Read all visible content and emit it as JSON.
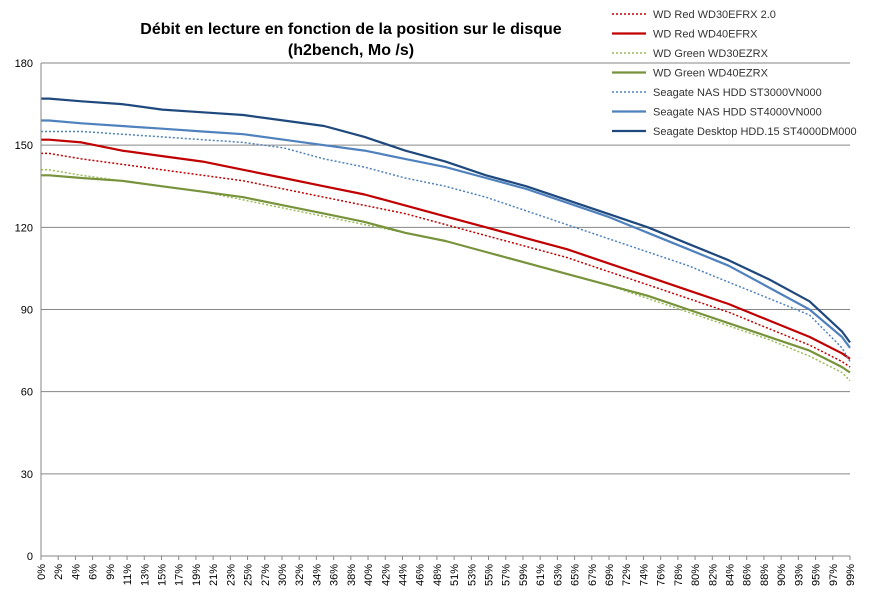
{
  "chart_data": {
    "type": "line",
    "title": "Débit en lecture en fonction de la position sur le disque",
    "subtitle": "(h2bench, Mo /s)",
    "xlabel": "",
    "ylabel": "",
    "ylim": [
      0,
      180
    ],
    "yticks": [
      0,
      30,
      60,
      90,
      120,
      150,
      180
    ],
    "grid": true,
    "legend_position": "top-right",
    "x_ticks": [
      "0%",
      "2%",
      "4%",
      "6%",
      "9%",
      "11%",
      "13%",
      "15%",
      "17%",
      "19%",
      "21%",
      "23%",
      "25%",
      "27%",
      "30%",
      "32%",
      "34%",
      "36%",
      "38%",
      "40%",
      "42%",
      "44%",
      "46%",
      "48%",
      "51%",
      "53%",
      "55%",
      "57%",
      "59%",
      "61%",
      "63%",
      "65%",
      "67%",
      "69%",
      "72%",
      "74%",
      "76%",
      "78%",
      "80%",
      "82%",
      "84%",
      "86%",
      "88%",
      "90%",
      "93%",
      "95%",
      "97%",
      "99%"
    ],
    "x": [
      0,
      1,
      5,
      10,
      15,
      20,
      25,
      30,
      35,
      40,
      45,
      50,
      55,
      60,
      65,
      70,
      75,
      80,
      85,
      90,
      95,
      99,
      100
    ],
    "series": [
      {
        "name": "WD Red WD30EFRX 2.0",
        "color": "#c00000",
        "style": "dotted",
        "values": [
          147,
          147,
          145,
          143,
          141,
          139,
          137,
          134,
          131,
          128,
          125,
          121,
          117,
          113,
          109,
          104,
          99,
          94,
          89,
          83,
          77,
          71,
          69
        ]
      },
      {
        "name": "WD Red WD40EFRX",
        "color": "#c00000",
        "style": "solid",
        "values": [
          152,
          152,
          151,
          148,
          146,
          144,
          141,
          138,
          135,
          132,
          128,
          124,
          120,
          116,
          112,
          107,
          102,
          97,
          92,
          86,
          80,
          74,
          72
        ]
      },
      {
        "name": "WD Green WD30EZRX",
        "color": "#9bbb59",
        "style": "dotted",
        "values": [
          141,
          141,
          139,
          137,
          135,
          133,
          130,
          127,
          124,
          121,
          118,
          115,
          111,
          107,
          103,
          99,
          94,
          89,
          84,
          79,
          73,
          67,
          64
        ]
      },
      {
        "name": "WD Green WD40EZRX",
        "color": "#77933c",
        "style": "solid",
        "values": [
          139,
          139,
          138,
          137,
          135,
          133,
          131,
          128,
          125,
          122,
          118,
          115,
          111,
          107,
          103,
          99,
          95,
          90,
          85,
          80,
          75,
          69,
          67
        ]
      },
      {
        "name": "Seagate NAS HDD ST3000VN000",
        "color": "#4f81bd",
        "style": "dotted",
        "values": [
          155,
          155,
          155,
          154,
          153,
          152,
          151,
          149,
          145,
          142,
          138,
          135,
          131,
          126,
          121,
          116,
          111,
          106,
          100,
          94,
          88,
          76,
          71
        ]
      },
      {
        "name": "Seagate NAS HDD ST4000VN000",
        "color": "#4f81bd",
        "style": "solid",
        "values": [
          159,
          159,
          158,
          157,
          156,
          155,
          154,
          152,
          150,
          148,
          145,
          142,
          138,
          134,
          129,
          124,
          118,
          112,
          106,
          98,
          90,
          80,
          76
        ]
      },
      {
        "name": "Seagate Desktop HDD.15 ST4000DM000",
        "color": "#1f497d",
        "style": "solid",
        "values": [
          167,
          167,
          166,
          165,
          163,
          162,
          161,
          159,
          157,
          153,
          148,
          144,
          139,
          135,
          130,
          125,
          120,
          114,
          108,
          101,
          93,
          82,
          78
        ]
      }
    ]
  }
}
